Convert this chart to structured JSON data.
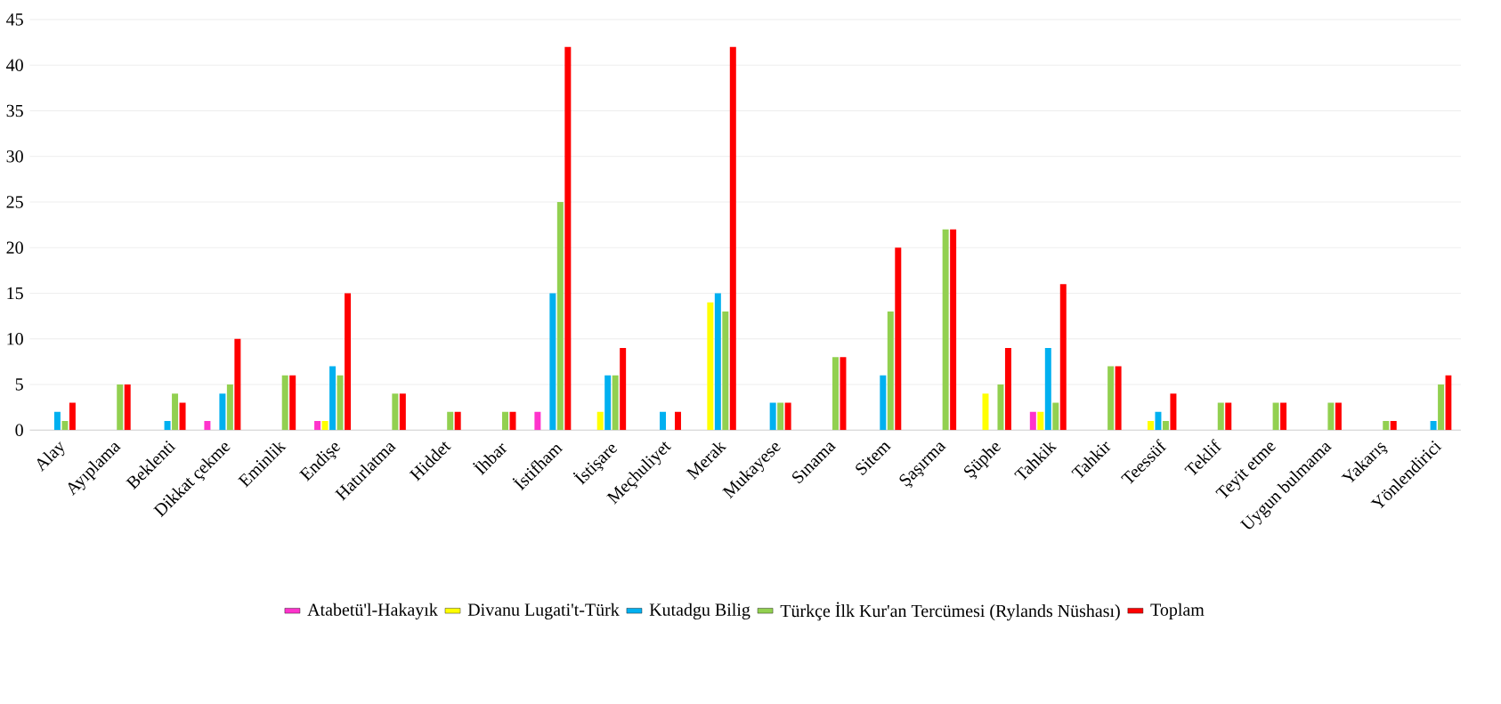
{
  "chart_data": {
    "type": "bar",
    "categories": [
      "Alay",
      "Ayıplama",
      "Beklenti",
      "Dikkat çekme",
      "Eminlik",
      "Endişe",
      "Hatırlatma",
      "Hiddet",
      "İhbar",
      "İstifham",
      "İstişare",
      "Meçhuliyet",
      "Merak",
      "Mukayese",
      "Sınama",
      "Sitem",
      "Şaşırma",
      "Şüphe",
      "Tahkik",
      "Tahkir",
      "Teessüf",
      "Teklif",
      "Teyit etme",
      "Uygun bulmama",
      "Yakarış",
      "Yönlendirici"
    ],
    "series": [
      {
        "name": "Atabetü'l-Hakayık",
        "color": "#ff33cc",
        "values": [
          null,
          null,
          null,
          1,
          null,
          1,
          null,
          null,
          null,
          2,
          null,
          null,
          null,
          null,
          null,
          null,
          null,
          null,
          2,
          null,
          null,
          null,
          null,
          null,
          null,
          null
        ]
      },
      {
        "name": "Divanu Lugati't-Türk",
        "color": "#ffff00",
        "values": [
          null,
          null,
          null,
          null,
          null,
          1,
          null,
          null,
          null,
          null,
          2,
          null,
          14,
          null,
          null,
          null,
          null,
          4,
          2,
          null,
          1,
          null,
          null,
          null,
          null,
          null
        ]
      },
      {
        "name": "Kutadgu Bilig",
        "color": "#00b0f0",
        "values": [
          2,
          null,
          1,
          4,
          null,
          7,
          null,
          null,
          null,
          15,
          6,
          2,
          15,
          3,
          null,
          6,
          null,
          null,
          9,
          null,
          2,
          null,
          null,
          null,
          null,
          1
        ]
      },
      {
        "name": "Türkçe İlk Kur'an Tercümesi (Rylands Nüshası)",
        "color": "#92d050",
        "values": [
          1,
          5,
          4,
          5,
          6,
          6,
          4,
          2,
          2,
          25,
          6,
          null,
          13,
          3,
          8,
          13,
          22,
          5,
          3,
          7,
          1,
          3,
          3,
          3,
          1,
          5
        ]
      },
      {
        "name": "Toplam",
        "color": "#ff0000",
        "values": [
          3,
          5,
          3,
          10,
          6,
          15,
          4,
          2,
          2,
          42,
          9,
          2,
          42,
          3,
          8,
          20,
          22,
          9,
          16,
          7,
          4,
          3,
          3,
          3,
          1,
          6
        ]
      }
    ],
    "ylim": [
      0,
      45
    ],
    "yticks": [
      0,
      5,
      10,
      15,
      20,
      25,
      30,
      35,
      40,
      45
    ],
    "grid": "y",
    "legend": "bottom"
  }
}
